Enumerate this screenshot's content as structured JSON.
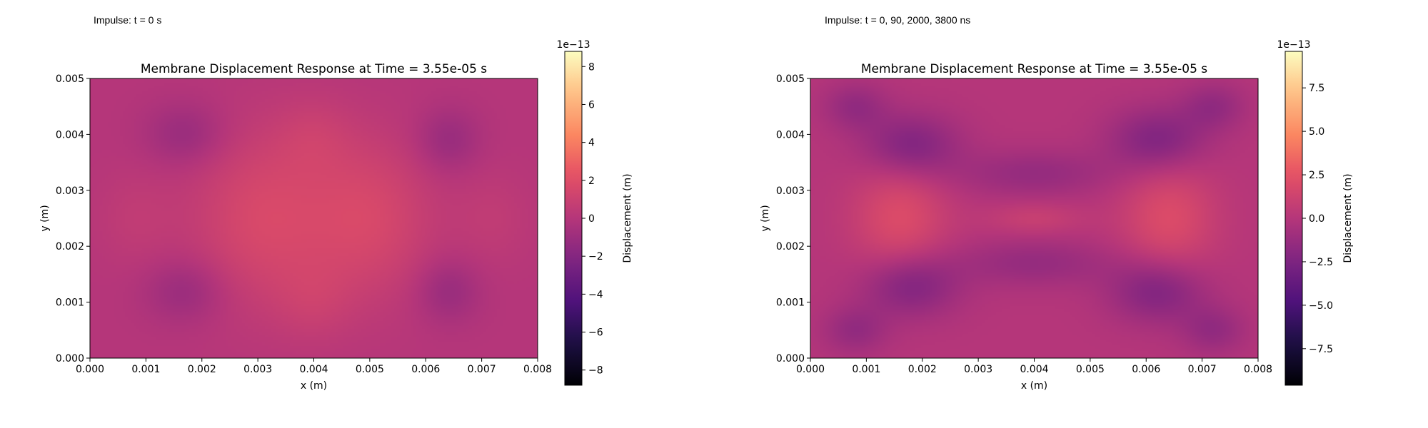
{
  "panels": [
    {
      "caption": "Impulse: t = 0 s"
    },
    {
      "caption": "Impulse: t = 0, 90, 2000, 3800 ns"
    }
  ],
  "chart_data": [
    {
      "type": "heatmap",
      "title": "Membrane Displacement Response at Time = 3.55e-05 s",
      "xlabel": "x (m)",
      "ylabel": "y (m)",
      "xlim": [
        0,
        0.008
      ],
      "ylim": [
        0,
        0.005
      ],
      "xticks": [
        "0.000",
        "0.001",
        "0.002",
        "0.003",
        "0.004",
        "0.005",
        "0.006",
        "0.007",
        "0.008"
      ],
      "yticks": [
        "0.000",
        "0.001",
        "0.002",
        "0.003",
        "0.004",
        "0.005"
      ],
      "colormap": "magma",
      "colorbar": {
        "label": "Displacement (m)",
        "offset": "1e−13",
        "range": [
          -8.8,
          8.8
        ],
        "ticks": [
          -8,
          -6,
          -4,
          -2,
          0,
          2,
          4,
          6,
          8
        ],
        "tick_labels": [
          "−8",
          "−6",
          "−4",
          "−2",
          "0",
          "2",
          "4",
          "6",
          "8"
        ]
      },
      "field": {
        "base": 0.0,
        "blobs": [
          {
            "x": 0.0031,
            "y": 0.0025,
            "sx": 0.0009,
            "sy": 0.0011,
            "v": 1.6
          },
          {
            "x": 0.005,
            "y": 0.0025,
            "sx": 0.0008,
            "sy": 0.001,
            "v": 1.5
          },
          {
            "x": 0.004,
            "y": 0.004,
            "sx": 0.0005,
            "sy": 0.0005,
            "v": 0.6
          },
          {
            "x": 0.004,
            "y": 0.001,
            "sx": 0.0005,
            "sy": 0.0005,
            "v": 0.6
          },
          {
            "x": 0.0008,
            "y": 0.0025,
            "sx": 0.0005,
            "sy": 0.0006,
            "v": 0.5
          },
          {
            "x": 0.0072,
            "y": 0.0025,
            "sx": 0.0005,
            "sy": 0.0006,
            "v": 0.5
          },
          {
            "x": 0.0017,
            "y": 0.004,
            "sx": 0.0005,
            "sy": 0.0004,
            "v": -1.2
          },
          {
            "x": 0.0017,
            "y": 0.0012,
            "sx": 0.0005,
            "sy": 0.0004,
            "v": -1.2
          },
          {
            "x": 0.0064,
            "y": 0.0039,
            "sx": 0.0004,
            "sy": 0.0004,
            "v": -1.2
          },
          {
            "x": 0.0064,
            "y": 0.0012,
            "sx": 0.0004,
            "sy": 0.0004,
            "v": -1.2
          }
        ]
      }
    },
    {
      "type": "heatmap",
      "title": "Membrane Displacement Response at Time = 3.55e-05 s",
      "xlabel": "x (m)",
      "ylabel": "y (m)",
      "xlim": [
        0,
        0.008
      ],
      "ylim": [
        0,
        0.005
      ],
      "xticks": [
        "0.000",
        "0.001",
        "0.002",
        "0.003",
        "0.004",
        "0.005",
        "0.006",
        "0.007",
        "0.008"
      ],
      "yticks": [
        "0.000",
        "0.001",
        "0.002",
        "0.003",
        "0.004",
        "0.005"
      ],
      "colormap": "magma",
      "colorbar": {
        "label": "Displacement (m)",
        "offset": "1e−13",
        "range": [
          -9.6,
          9.6
        ],
        "ticks": [
          -7.5,
          -5.0,
          -2.5,
          0.0,
          2.5,
          5.0,
          7.5
        ],
        "tick_labels": [
          "−7.5",
          "−5.0",
          "−2.5",
          "0.0",
          "2.5",
          "5.0",
          "7.5"
        ]
      },
      "field": {
        "base": 0.0,
        "blobs": [
          {
            "x": 0.0016,
            "y": 0.0025,
            "sx": 0.0006,
            "sy": 0.0007,
            "v": 2.0
          },
          {
            "x": 0.0064,
            "y": 0.0025,
            "sx": 0.0006,
            "sy": 0.0007,
            "v": 2.0
          },
          {
            "x": 0.004,
            "y": 0.0025,
            "sx": 0.0006,
            "sy": 0.0002,
            "v": 1.0
          },
          {
            "x": 0.0018,
            "y": 0.0038,
            "sx": 0.0006,
            "sy": 0.0004,
            "v": -2.4
          },
          {
            "x": 0.0018,
            "y": 0.0013,
            "sx": 0.0006,
            "sy": 0.0004,
            "v": -2.4
          },
          {
            "x": 0.0062,
            "y": 0.0039,
            "sx": 0.0006,
            "sy": 0.0004,
            "v": -2.4
          },
          {
            "x": 0.0062,
            "y": 0.0012,
            "sx": 0.0006,
            "sy": 0.0004,
            "v": -2.4
          },
          {
            "x": 0.0008,
            "y": 0.0045,
            "sx": 0.0004,
            "sy": 0.0003,
            "v": -1.5
          },
          {
            "x": 0.0072,
            "y": 0.0045,
            "sx": 0.0004,
            "sy": 0.0003,
            "v": -1.5
          },
          {
            "x": 0.0008,
            "y": 0.0005,
            "sx": 0.0004,
            "sy": 0.0003,
            "v": -1.5
          },
          {
            "x": 0.0072,
            "y": 0.0005,
            "sx": 0.0004,
            "sy": 0.0003,
            "v": -1.5
          },
          {
            "x": 0.004,
            "y": 0.0033,
            "sx": 0.001,
            "sy": 0.0003,
            "v": -1.4
          },
          {
            "x": 0.004,
            "y": 0.0017,
            "sx": 0.001,
            "sy": 0.0003,
            "v": -1.4
          }
        ]
      }
    }
  ]
}
